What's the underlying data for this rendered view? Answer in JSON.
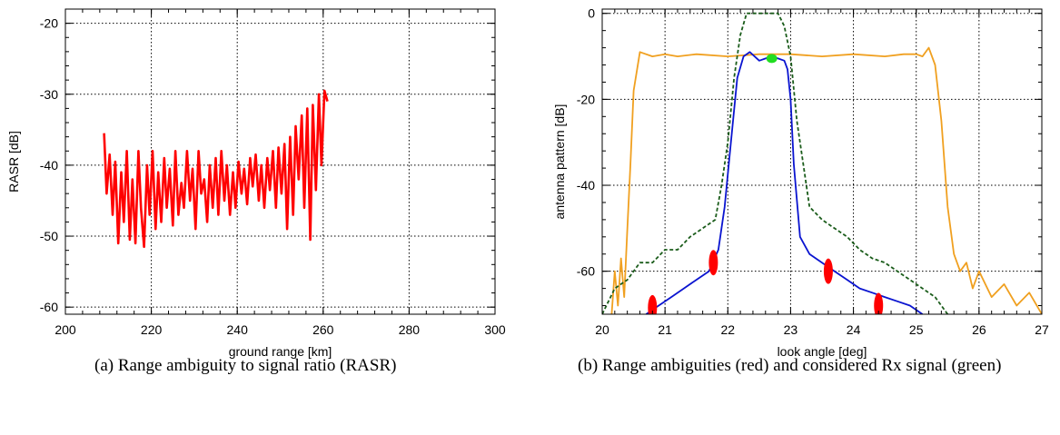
{
  "chart_data": [
    {
      "type": "line",
      "xlabel": "ground range [km]",
      "ylabel": "RASR [dB]",
      "xlim": [
        200,
        300
      ],
      "ylim": [
        -61,
        -18
      ],
      "x_ticks": [
        200,
        220,
        240,
        260,
        280,
        300
      ],
      "y_ticks": [
        -20,
        -30,
        -40,
        -50,
        -60
      ],
      "grid": true,
      "series": [
        {
          "color": "#ff0000",
          "x": [
            209,
            209.6,
            210.3,
            211,
            211.6,
            212.3,
            213,
            213.6,
            214.3,
            215,
            215.6,
            216.3,
            217,
            217.6,
            218.3,
            219,
            219.6,
            220.3,
            221,
            221.6,
            222.3,
            223,
            223.6,
            224.3,
            225,
            225.6,
            226.3,
            227,
            227.6,
            228.3,
            229,
            229.6,
            230.3,
            231,
            231.6,
            232.3,
            233,
            233.6,
            234.3,
            235,
            235.6,
            236.3,
            237,
            237.6,
            238.3,
            239,
            239.6,
            240.3,
            241,
            241.6,
            242.3,
            243,
            243.6,
            244.3,
            245,
            245.6,
            246.3,
            247,
            247.6,
            248.3,
            249,
            249.6,
            250.3,
            251,
            251.6,
            252.3,
            253,
            253.6,
            254.3,
            255,
            255.6,
            256.3,
            257,
            257.6,
            258.3,
            259,
            259.6,
            260.3,
            261
          ],
          "values": [
            -35.5,
            -44,
            -38.5,
            -47,
            -39.5,
            -51,
            -41,
            -48,
            -38,
            -50.5,
            -42,
            -51,
            -38,
            -46,
            -51.5,
            -40,
            -47,
            -38,
            -49,
            -41,
            -48,
            -39,
            -46,
            -40.5,
            -48.5,
            -38,
            -47,
            -42.5,
            -46,
            -38,
            -45,
            -40.5,
            -49,
            -38,
            -44,
            -42,
            -48,
            -40,
            -46,
            -39,
            -47,
            -38,
            -45,
            -40,
            -47,
            -41,
            -46,
            -39.5,
            -44,
            -40.5,
            -45.5,
            -39,
            -43,
            -38.5,
            -45,
            -40,
            -46,
            -39,
            -43.5,
            -38,
            -46,
            -37.5,
            -44,
            -37,
            -49,
            -36,
            -47,
            -34.5,
            -42,
            -33,
            -46,
            -32,
            -50.5,
            -31.5,
            -43.5,
            -30,
            -40,
            -29.5,
            -31
          ]
        }
      ]
    },
    {
      "type": "line",
      "xlabel": "look angle [deg]",
      "ylabel": "antenna pattern [dB]",
      "xlim": [
        20,
        27
      ],
      "ylim": [
        -70,
        1
      ],
      "x_ticks": [
        20,
        21,
        22,
        23,
        24,
        25,
        26,
        27
      ],
      "y_ticks": [
        0,
        -20,
        -40,
        -60
      ],
      "grid": true,
      "series": [
        {
          "color": "#f0a020",
          "style": "solid",
          "x": [
            20.15,
            20.2,
            20.25,
            20.3,
            20.35,
            20.4,
            20.45,
            20.5,
            20.6,
            20.8,
            21.0,
            21.2,
            21.5,
            22.0,
            22.5,
            23.0,
            23.5,
            24.0,
            24.5,
            24.8,
            25.0,
            25.1,
            25.2,
            25.3,
            25.4,
            25.5,
            25.6,
            25.7,
            25.8,
            25.9,
            26.0,
            26.2,
            26.4,
            26.6,
            26.8,
            27.0
          ],
          "values": [
            -70,
            -60,
            -68,
            -57,
            -66,
            -50,
            -35,
            -18,
            -9,
            -10,
            -9.5,
            -10,
            -9.5,
            -10,
            -9.5,
            -9.5,
            -10,
            -9.5,
            -10,
            -9.5,
            -9.5,
            -10,
            -8,
            -12,
            -25,
            -45,
            -56,
            -60,
            -58,
            -64,
            -60,
            -66,
            -63,
            -68,
            -65,
            -70
          ]
        },
        {
          "color": "#1a5c1a",
          "style": "dashed",
          "x": [
            20.0,
            20.2,
            20.4,
            20.6,
            20.8,
            21.0,
            21.2,
            21.4,
            21.6,
            21.8,
            21.9,
            22.0,
            22.1,
            22.2,
            22.3,
            22.4,
            22.6,
            22.8,
            22.9,
            23.0,
            23.1,
            23.2,
            23.3,
            23.5,
            23.7,
            23.9,
            24.1,
            24.3,
            24.5,
            24.7,
            24.9,
            25.1,
            25.3,
            25.5
          ],
          "values": [
            -70,
            -64,
            -62,
            -58,
            -58,
            -55,
            -55,
            -52,
            -50,
            -48,
            -40,
            -30,
            -15,
            -5,
            0,
            0,
            0,
            0,
            -3,
            -10,
            -25,
            -35,
            -45,
            -48,
            -50,
            -52,
            -55,
            -57,
            -58,
            -60,
            -62,
            -64,
            -66,
            -70
          ]
        },
        {
          "color": "#0a14d0",
          "style": "solid",
          "x": [
            20.7,
            20.9,
            21.1,
            21.3,
            21.5,
            21.7,
            21.85,
            21.95,
            22.05,
            22.15,
            22.25,
            22.35,
            22.5,
            22.6,
            22.7,
            22.8,
            22.9,
            22.95,
            23.0,
            23.05,
            23.15,
            23.3,
            23.5,
            23.7,
            23.9,
            24.1,
            24.3,
            24.5,
            24.7,
            24.9,
            25.0,
            25.1
          ],
          "values": [
            -70,
            -68,
            -66,
            -64,
            -62,
            -60,
            -55,
            -45,
            -30,
            -15,
            -10,
            -9,
            -11,
            -10.5,
            -10,
            -10.5,
            -11,
            -13,
            -20,
            -35,
            -52,
            -56,
            -58,
            -60,
            -62,
            -64,
            -65,
            -66,
            -67,
            -68,
            -69,
            -70
          ]
        }
      ],
      "markers": [
        {
          "color": "#ff0000",
          "x": 20.8,
          "y": -68.5
        },
        {
          "color": "#ff0000",
          "x": 21.77,
          "y": -58
        },
        {
          "color": "#ff0000",
          "x": 23.6,
          "y": -60
        },
        {
          "color": "#ff0000",
          "x": 24.4,
          "y": -68
        },
        {
          "color": "#22dd22",
          "x": 22.7,
          "y": -10.5
        }
      ]
    }
  ],
  "captions": {
    "a": "(a) Range ambiguity to signal ratio (RASR)",
    "b": "(b) Range ambiguities (red) and considered Rx signal (green)"
  }
}
